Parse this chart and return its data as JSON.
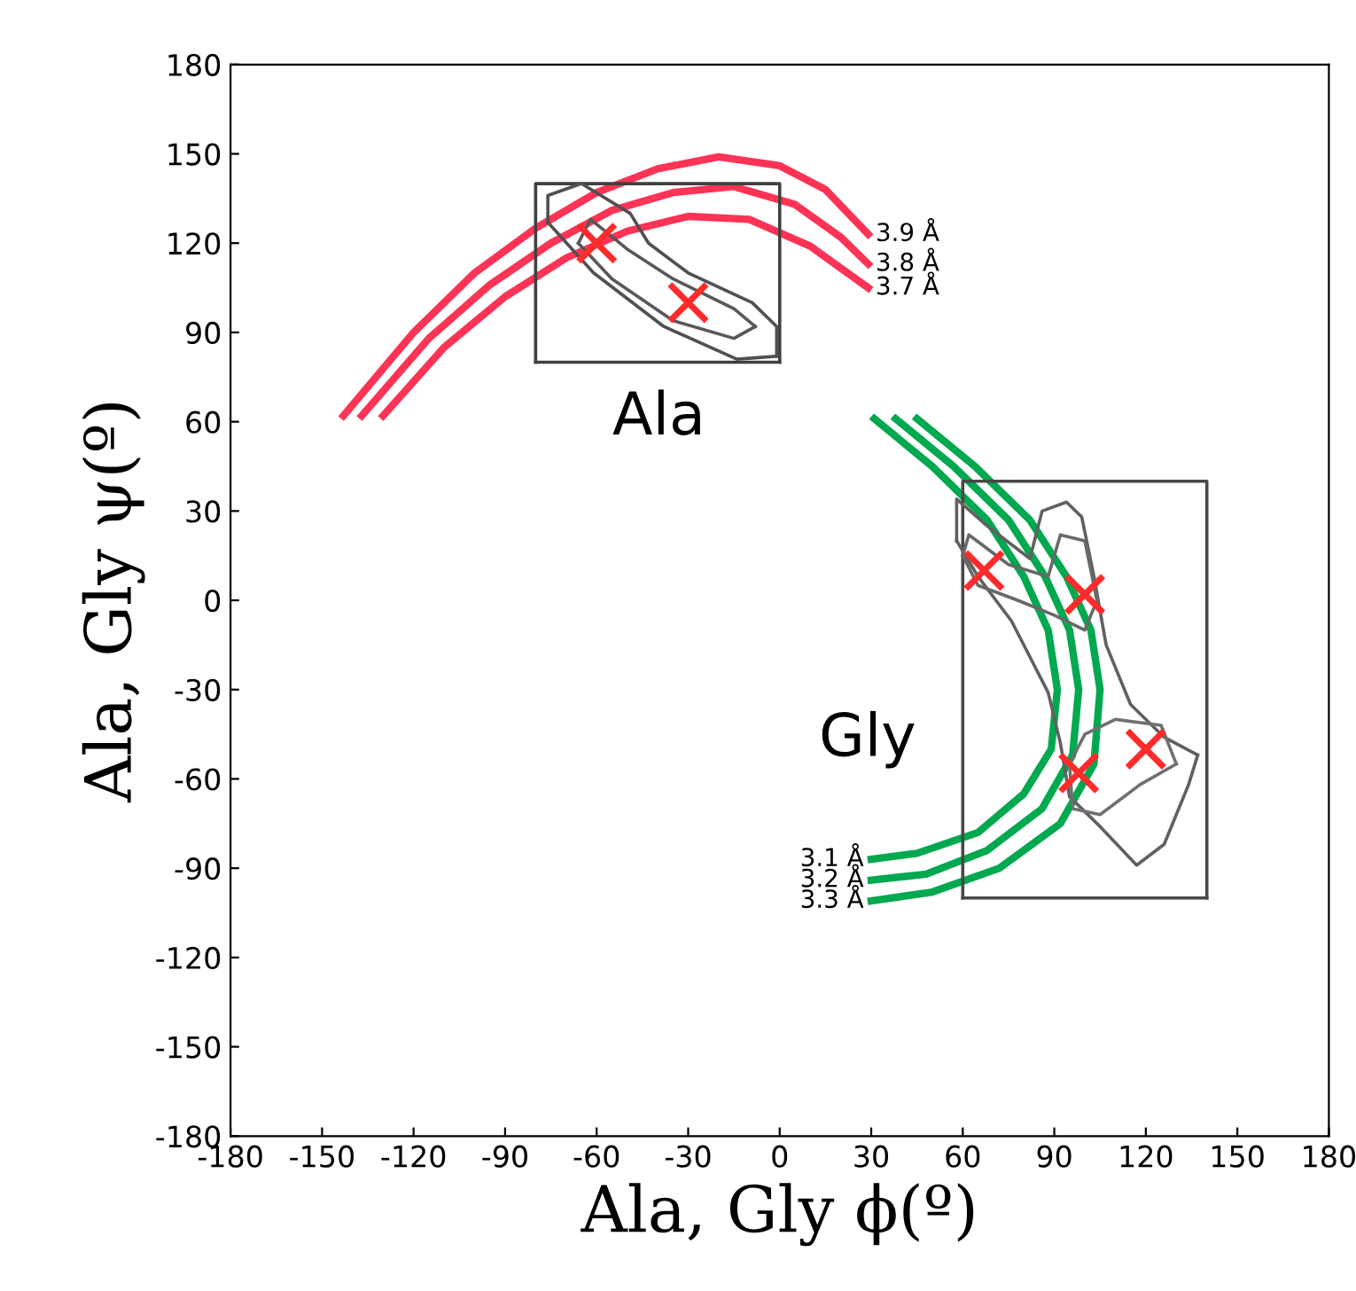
{
  "chart_data": {
    "type": "line",
    "xlabel": "Ala, Gly ϕ(º)",
    "ylabel": "Ala, Gly ψ(º)",
    "xlim": [
      -180,
      180
    ],
    "ylim": [
      -180,
      180
    ],
    "xticks": [
      -180,
      -150,
      -120,
      -90,
      -60,
      -30,
      0,
      30,
      60,
      90,
      120,
      150,
      180
    ],
    "yticks": [
      -180,
      -150,
      -120,
      -90,
      -60,
      -30,
      0,
      30,
      60,
      90,
      120,
      150,
      180
    ],
    "grid": false,
    "legend": false,
    "line_style": "solid",
    "marker": "none",
    "series": [
      {
        "color": "#ff3355",
        "x": [
          -143,
          -120,
          -100,
          -80,
          -60,
          -40,
          -20,
          0,
          15,
          29
        ],
        "values": [
          62,
          90,
          110,
          125,
          137,
          145,
          149,
          146,
          138,
          123
        ]
      },
      {
        "color": "#ff3355",
        "x": [
          -137,
          -115,
          -95,
          -75,
          -55,
          -35,
          -15,
          5,
          20,
          29
        ],
        "values": [
          62,
          88,
          106,
          120,
          131,
          137,
          139,
          133,
          122,
          113
        ]
      },
      {
        "color": "#ff3355",
        "x": [
          -130,
          -110,
          -90,
          -70,
          -50,
          -30,
          -10,
          10,
          29
        ],
        "values": [
          62,
          85,
          102,
          115,
          124,
          129,
          128,
          119,
          105
        ]
      },
      {
        "color": "#00a84f",
        "x": [
          31,
          50,
          68,
          80,
          88,
          91,
          89,
          80,
          65,
          45,
          30
        ],
        "values": [
          61,
          45,
          27,
          8,
          -10,
          -30,
          -50,
          -65,
          -78,
          -85,
          -87
        ]
      },
      {
        "color": "#00a84f",
        "x": [
          38,
          57,
          75,
          87,
          95,
          98,
          96,
          86,
          68,
          48,
          30
        ],
        "values": [
          61,
          45,
          27,
          8,
          -10,
          -30,
          -52,
          -70,
          -84,
          -92,
          -94
        ]
      },
      {
        "color": "#00a84f",
        "x": [
          45,
          64,
          82,
          94,
          102,
          105,
          103,
          92,
          72,
          50,
          30
        ],
        "values": [
          61,
          45,
          27,
          8,
          -10,
          -30,
          -55,
          -75,
          -90,
          -98,
          -101
        ]
      },
      {
        "color": "#404040",
        "x": [
          -80,
          -80,
          0,
          0
        ],
        "values": [
          80,
          140,
          140,
          80
        ]
      },
      {
        "color": "#404040",
        "x": [
          -80,
          0
        ],
        "values": [
          80,
          80
        ]
      },
      {
        "color": "#484848",
        "x": [
          60,
          60,
          140,
          140
        ],
        "values": [
          -100,
          40,
          40,
          -100
        ]
      },
      {
        "color": "#484848",
        "x": [
          60,
          140
        ],
        "values": [
          -100,
          -100
        ]
      },
      {
        "color": "#505050",
        "x": [
          -76,
          -76,
          -65,
          -49,
          -43,
          -30,
          -9,
          -1,
          -1
        ],
        "values": [
          127,
          136,
          140,
          130,
          120,
          110,
          100,
          92,
          82
        ]
      },
      {
        "color": "#505050",
        "x": [
          -76,
          -61,
          -38,
          -14,
          -1
        ],
        "values": [
          127,
          110,
          92,
          81,
          82
        ]
      },
      {
        "color": "#585858",
        "x": [
          -66,
          -62,
          -50,
          -35,
          -15,
          -8
        ],
        "values": [
          120,
          128,
          118,
          108,
          98,
          92
        ]
      },
      {
        "color": "#585858",
        "x": [
          -66,
          -55,
          -35,
          -15,
          -8
        ],
        "values": [
          120,
          108,
          94,
          88,
          92
        ]
      },
      {
        "color": "#606060",
        "x": [
          58,
          58,
          68,
          82,
          86,
          94,
          99,
          103,
          107,
          115,
          126,
          137
        ],
        "values": [
          20,
          34,
          25,
          14,
          30,
          33,
          28,
          8,
          -15,
          -35,
          -46,
          -52
        ]
      },
      {
        "color": "#606060",
        "x": [
          58,
          65,
          76,
          88,
          92,
          95,
          105,
          117,
          126,
          134,
          137
        ],
        "values": [
          20,
          8,
          -7,
          -31,
          -48,
          -66,
          -76,
          -89,
          -82,
          -62,
          -52
        ]
      },
      {
        "color": "#686868",
        "x": [
          60,
          62,
          75,
          88,
          92,
          100,
          104
        ],
        "values": [
          15,
          22,
          12,
          8,
          22,
          20,
          0
        ]
      },
      {
        "color": "#686868",
        "x": [
          60,
          65,
          78,
          90,
          100,
          104
        ],
        "values": [
          15,
          5,
          0,
          -5,
          -10,
          0
        ]
      },
      {
        "color": "#707070",
        "x": [
          95,
          100,
          110,
          125,
          130
        ],
        "values": [
          -55,
          -45,
          -40,
          -42,
          -55
        ]
      },
      {
        "color": "#707070",
        "x": [
          95,
          96,
          105,
          118,
          130
        ],
        "values": [
          -55,
          -70,
          -72,
          -62,
          -55
        ]
      },
      {
        "type": "scatter",
        "marker": "cross",
        "color": "#ff2a2a",
        "x": [
          -60,
          -30,
          67,
          100,
          98,
          120
        ],
        "values": [
          120,
          100,
          10,
          2,
          -58,
          -50
        ]
      }
    ],
    "annotations": [
      "3.9 Å",
      "3.8 Å",
      "3.7 Å",
      "3.1 Å",
      "3.2 Å",
      "3.3 Å",
      "Ala",
      "Gly"
    ]
  }
}
